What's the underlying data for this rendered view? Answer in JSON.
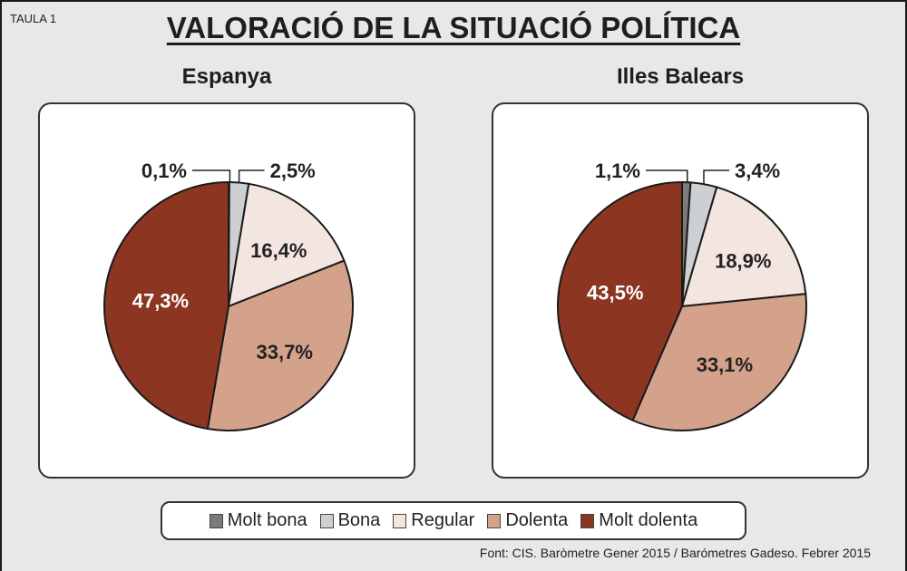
{
  "table_label": "TAULA 1",
  "title": "VALORACIÓ DE LA SITUACIÓ POLÍTICA",
  "source": "Font: CIS. Baròmetre Gener 2015 / Barómetres Gadeso. Febrer 2015",
  "categories": [
    "Molt bona",
    "Bona",
    "Regular",
    "Dolenta",
    "Molt dolenta"
  ],
  "colors": [
    "#7b7b7d",
    "#cdd0d3",
    "#f3e5df",
    "#d4a28b",
    "#8c3621"
  ],
  "legend": [
    {
      "label": "Molt bona",
      "color": "#7b7b7d"
    },
    {
      "label": "Bona",
      "color": "#cdd0d3"
    },
    {
      "label": "Regular",
      "color": "#f3e5df"
    },
    {
      "label": "Dolenta",
      "color": "#d4a28b"
    },
    {
      "label": "Molt dolenta",
      "color": "#8c3621"
    }
  ],
  "chart_data": [
    {
      "type": "pie",
      "title": "Espanya",
      "categories": [
        "Molt bona",
        "Bona",
        "Regular",
        "Dolenta",
        "Molt dolenta"
      ],
      "values": [
        0.1,
        2.5,
        16.4,
        33.7,
        47.3
      ],
      "labels": [
        "0,1%",
        "2,5%",
        "16,4%",
        "33,7%",
        "47,3%"
      ],
      "start_angle": "12 o'clock",
      "direction": "clockwise",
      "legend": "bottom"
    },
    {
      "type": "pie",
      "title": "Illes Balears",
      "categories": [
        "Molt bona",
        "Bona",
        "Regular",
        "Dolenta",
        "Molt dolenta"
      ],
      "values": [
        1.1,
        3.4,
        18.9,
        33.1,
        43.5
      ],
      "labels": [
        "1,1%",
        "3,4%",
        "18,9%",
        "33,1%",
        "43,5%"
      ],
      "start_angle": "12 o'clock",
      "direction": "clockwise",
      "legend": "bottom"
    }
  ]
}
